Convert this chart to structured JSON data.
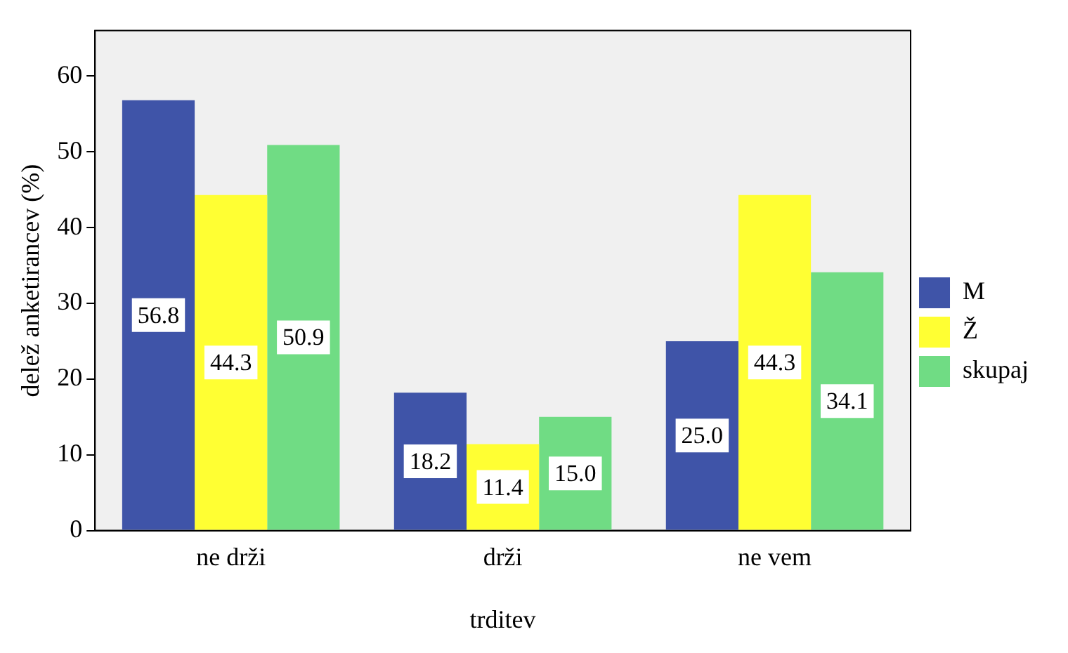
{
  "chart_data": {
    "type": "bar",
    "xlabel": "trditev",
    "ylabel": "delež anketirancev (%)",
    "categories": [
      "ne drži",
      "drži",
      "ne vem"
    ],
    "series": [
      {
        "name": "M",
        "color": "#3f54a8",
        "values": [
          56.8,
          18.2,
          25.0
        ],
        "value_labels": [
          "56.8",
          "18.2",
          "25.0"
        ]
      },
      {
        "name": "Ž",
        "color": "#ffff33",
        "values": [
          44.3,
          11.4,
          44.3
        ],
        "value_labels": [
          "44.3",
          "11.4",
          "44.3"
        ]
      },
      {
        "name": "skupaj",
        "color": "#70dc84",
        "values": [
          50.9,
          15.0,
          34.1
        ],
        "value_labels": [
          "50.9",
          "15.0",
          "34.1"
        ]
      }
    ],
    "ylim": [
      0,
      66
    ],
    "yticks": [
      0,
      10,
      20,
      30,
      40,
      50,
      60
    ],
    "grid": false,
    "legend": "right"
  }
}
